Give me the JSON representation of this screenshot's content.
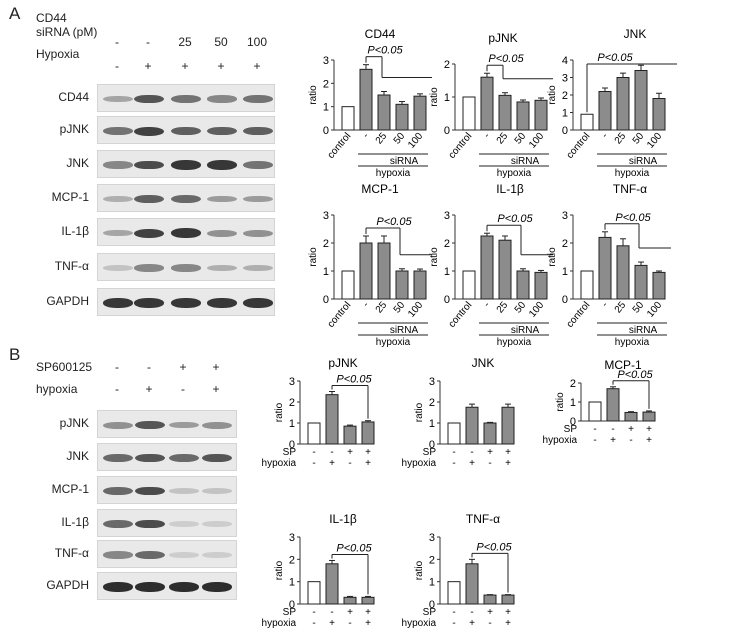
{
  "panelA": {
    "letter": "A",
    "conditions": [
      {
        "label": "CD44",
        "signs": []
      },
      {
        "label": "siRNA (pM)",
        "signs": [
          "-",
          "-",
          "25",
          "50",
          "100"
        ]
      },
      {
        "label": "Hypoxia",
        "signs": [
          "-",
          "+",
          "+",
          "+",
          "+"
        ]
      }
    ],
    "blots": [
      {
        "label": "CD44",
        "intensity": [
          0.3,
          0.7,
          0.55,
          0.45,
          0.55
        ]
      },
      {
        "label": "pJNK",
        "intensity": [
          0.55,
          0.8,
          0.65,
          0.65,
          0.65
        ]
      },
      {
        "label": "JNK",
        "intensity": [
          0.45,
          0.75,
          0.85,
          0.85,
          0.55
        ]
      },
      {
        "label": "MCP-1",
        "intensity": [
          0.25,
          0.65,
          0.6,
          0.35,
          0.35
        ]
      },
      {
        "label": "IL-1β",
        "intensity": [
          0.3,
          0.8,
          0.85,
          0.4,
          0.4
        ]
      },
      {
        "label": "TNF-α",
        "intensity": [
          0.15,
          0.45,
          0.45,
          0.25,
          0.25
        ]
      },
      {
        "label": "GAPDH",
        "intensity": [
          0.85,
          0.85,
          0.85,
          0.85,
          0.85
        ]
      }
    ]
  },
  "panelB": {
    "letter": "B",
    "conditions": [
      {
        "label": "SP600125",
        "signs": [
          "-",
          "-",
          "+",
          "+"
        ]
      },
      {
        "label": "hypoxia",
        "signs": [
          "-",
          "+",
          "-",
          "+"
        ]
      }
    ],
    "blots": [
      {
        "label": "pJNK",
        "intensity": [
          0.4,
          0.7,
          0.35,
          0.4
        ]
      },
      {
        "label": "JNK",
        "intensity": [
          0.6,
          0.7,
          0.6,
          0.7
        ]
      },
      {
        "label": "MCP-1",
        "intensity": [
          0.6,
          0.75,
          0.15,
          0.15
        ]
      },
      {
        "label": "IL-1β",
        "intensity": [
          0.6,
          0.75,
          0.1,
          0.1
        ]
      },
      {
        "label": "TNF-α",
        "intensity": [
          0.45,
          0.6,
          0.1,
          0.1
        ]
      },
      {
        "label": "GAPDH",
        "intensity": [
          0.9,
          0.9,
          0.9,
          0.9
        ]
      }
    ]
  },
  "chart_data": [
    {
      "type": "bar",
      "title": "CD44",
      "ylabel": "ratio",
      "ylim": [
        0,
        3
      ],
      "yticks": [
        0,
        1,
        2,
        3
      ],
      "categories": [
        "control",
        "-",
        "25",
        "50",
        "100"
      ],
      "values": [
        1.0,
        2.6,
        1.5,
        1.1,
        1.45
      ],
      "errors": [
        0,
        0.2,
        0.15,
        0.12,
        0.1
      ],
      "filled": [
        false,
        true,
        true,
        true,
        true
      ],
      "sig_label": "P<0.05",
      "sig_type": "siRNA",
      "group_labels": {
        "siRNA": "siRNA",
        "hypoxia": "hypoxia"
      }
    },
    {
      "type": "bar",
      "title": "pJNK",
      "ylabel": "ratio",
      "ylim": [
        0,
        2
      ],
      "yticks": [
        0,
        1,
        2
      ],
      "categories": [
        "control",
        "-",
        "25",
        "50",
        "100"
      ],
      "values": [
        1.0,
        1.6,
        1.05,
        0.85,
        0.9
      ],
      "errors": [
        0,
        0.12,
        0.08,
        0.06,
        0.07
      ],
      "filled": [
        false,
        true,
        true,
        true,
        true
      ],
      "sig_label": "P<0.05",
      "sig_type": "siRNA",
      "group_labels": {
        "siRNA": "siRNA",
        "hypoxia": "hypoxia"
      }
    },
    {
      "type": "bar",
      "title": "JNK",
      "ylabel": "ratio",
      "ylim": [
        0,
        4
      ],
      "yticks": [
        0,
        1,
        2,
        3,
        4
      ],
      "categories": [
        "control",
        "-",
        "25",
        "50",
        "100"
      ],
      "values": [
        0.9,
        2.2,
        3.0,
        3.4,
        1.8
      ],
      "errors": [
        0,
        0.2,
        0.25,
        0.3,
        0.3
      ],
      "filled": [
        false,
        true,
        true,
        true,
        true
      ],
      "sig_label": "P<0.05",
      "sig_type": "jnk",
      "group_labels": {
        "siRNA": "siRNA",
        "hypoxia": "hypoxia"
      }
    },
    {
      "type": "bar",
      "title": "MCP-1",
      "ylabel": "ratio",
      "ylim": [
        0,
        3
      ],
      "yticks": [
        0,
        1,
        2,
        3
      ],
      "categories": [
        "control",
        "-",
        "25",
        "50",
        "100"
      ],
      "values": [
        1.0,
        2.0,
        2.0,
        1.0,
        1.0
      ],
      "errors": [
        0,
        0.25,
        0.25,
        0.08,
        0.07
      ],
      "filled": [
        false,
        true,
        true,
        true,
        true
      ],
      "sig_label": "P<0.05",
      "sig_type": "siRNA2",
      "group_labels": {
        "siRNA": "siRNA",
        "hypoxia": "hypoxia"
      }
    },
    {
      "type": "bar",
      "title": "IL-1β",
      "ylabel": "ratio",
      "ylim": [
        0,
        3
      ],
      "yticks": [
        0,
        1,
        2,
        3
      ],
      "categories": [
        "control",
        "-",
        "25",
        "50",
        "100"
      ],
      "values": [
        1.0,
        2.25,
        2.1,
        1.0,
        0.95
      ],
      "errors": [
        0,
        0.1,
        0.15,
        0.08,
        0.07
      ],
      "filled": [
        false,
        true,
        true,
        true,
        true
      ],
      "sig_label": "P<0.05",
      "sig_type": "siRNA2",
      "group_labels": {
        "siRNA": "siRNA",
        "hypoxia": "hypoxia"
      }
    },
    {
      "type": "bar",
      "title": "TNF-α",
      "ylabel": "ratio",
      "ylim": [
        0,
        3
      ],
      "yticks": [
        0,
        1,
        2,
        3
      ],
      "categories": [
        "control",
        "-",
        "25",
        "50",
        "100"
      ],
      "values": [
        1.0,
        2.2,
        1.9,
        1.2,
        0.95
      ],
      "errors": [
        0,
        0.2,
        0.25,
        0.12,
        0.05
      ],
      "filled": [
        false,
        true,
        true,
        true,
        true
      ],
      "sig_label": "P<0.05",
      "sig_type": "siRNA2",
      "group_labels": {
        "siRNA": "siRNA",
        "hypoxia": "hypoxia"
      }
    },
    {
      "type": "bar",
      "title": "pJNK",
      "ylabel": "ratio",
      "ylim": [
        0,
        3
      ],
      "yticks": [
        0,
        1,
        2,
        3
      ],
      "values": [
        1.0,
        2.35,
        0.85,
        1.05
      ],
      "errors": [
        0,
        0.15,
        0.05,
        0.06
      ],
      "filled": [
        false,
        true,
        true,
        true
      ],
      "sig_label": "P<0.05",
      "sig_type": "sp",
      "row_labels": {
        "sp": "SP",
        "hyp": "hypoxia"
      },
      "sp_signs": [
        "-",
        "-",
        "+",
        "+"
      ],
      "hyp_signs": [
        "-",
        "+",
        "-",
        "+"
      ]
    },
    {
      "type": "bar",
      "title": "JNK",
      "ylabel": "ratio",
      "ylim": [
        0,
        3
      ],
      "yticks": [
        0,
        1,
        2,
        3
      ],
      "values": [
        1.0,
        1.75,
        1.0,
        1.75
      ],
      "errors": [
        0,
        0.15,
        0.03,
        0.15
      ],
      "filled": [
        false,
        true,
        true,
        true
      ],
      "sig_label": "",
      "sig_type": "none",
      "row_labels": {
        "sp": "SP",
        "hyp": "hypoxia"
      },
      "sp_signs": [
        "-",
        "-",
        "+",
        "+"
      ],
      "hyp_signs": [
        "-",
        "+",
        "-",
        "+"
      ]
    },
    {
      "type": "bar",
      "title": "MCP-1",
      "ylabel": "ratio",
      "ylim": [
        0,
        2
      ],
      "yticks": [
        0,
        1,
        2
      ],
      "values": [
        1.0,
        1.7,
        0.45,
        0.47
      ],
      "errors": [
        0,
        0.1,
        0.04,
        0.06
      ],
      "filled": [
        false,
        true,
        true,
        true
      ],
      "sig_label": "P<0.05",
      "sig_type": "sp",
      "row_labels": {
        "sp": "SP",
        "hyp": "hypoxia"
      },
      "sp_signs": [
        "-",
        "-",
        "+",
        "+"
      ],
      "hyp_signs": [
        "-",
        "+",
        "-",
        "+"
      ]
    },
    {
      "type": "bar",
      "title": "IL-1β",
      "ylabel": "ratio",
      "ylim": [
        0,
        3
      ],
      "yticks": [
        0,
        1,
        2,
        3
      ],
      "values": [
        1.0,
        1.8,
        0.3,
        0.3
      ],
      "errors": [
        0,
        0.15,
        0.04,
        0.04
      ],
      "filled": [
        false,
        true,
        true,
        true
      ],
      "sig_label": "P<0.05",
      "sig_type": "sp",
      "row_labels": {
        "sp": "SP",
        "hyp": "hypoxia"
      },
      "sp_signs": [
        "-",
        "-",
        "+",
        "+"
      ],
      "hyp_signs": [
        "-",
        "+",
        "-",
        "+"
      ]
    },
    {
      "type": "bar",
      "title": "TNF-α",
      "ylabel": "ratio",
      "ylim": [
        0,
        3
      ],
      "yticks": [
        0,
        1,
        2,
        3
      ],
      "values": [
        1.0,
        1.8,
        0.4,
        0.4
      ],
      "errors": [
        0,
        0.2,
        0.02,
        0.02
      ],
      "filled": [
        false,
        true,
        true,
        true
      ],
      "sig_label": "P<0.05",
      "sig_type": "sp",
      "row_labels": {
        "sp": "SP",
        "hyp": "hypoxia"
      },
      "sp_signs": [
        "-",
        "-",
        "+",
        "+"
      ],
      "hyp_signs": [
        "-",
        "+",
        "-",
        "+"
      ]
    }
  ]
}
